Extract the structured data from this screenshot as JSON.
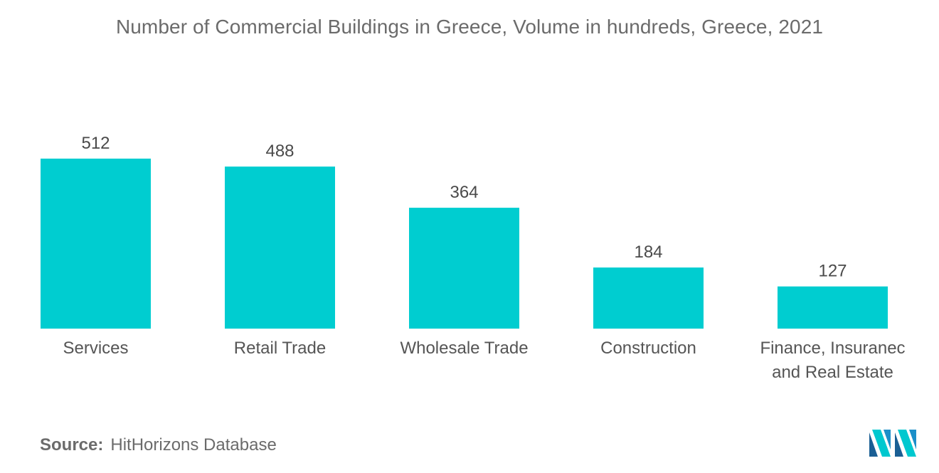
{
  "title": "Number of Commercial Buildings in Greece, Volume in hundreds, Greece, 2021",
  "source": {
    "label": "Source:",
    "text": "HitHorizons Database"
  },
  "logo": {
    "icon": "mordor-intelligence-logo-icon",
    "colors": [
      "#1b8fc9",
      "#00c8cf",
      "#1a5f94"
    ]
  },
  "chart_data": {
    "type": "bar",
    "title": "Number of Commercial Buildings in Greece, Volume in hundreds, Greece, 2021",
    "xlabel": "",
    "ylabel": "",
    "categories": [
      [
        "Services"
      ],
      [
        "Retail Trade"
      ],
      [
        "Wholesale Trade"
      ],
      [
        "Construction"
      ],
      [
        "Finance, Insuranec",
        "and Real Estate"
      ]
    ],
    "values": [
      512,
      488,
      364,
      184,
      127
    ],
    "ylim": [
      0,
      512
    ],
    "bar_color": "#00cdd0",
    "grid": false,
    "legend": "none",
    "data_labels": true
  }
}
